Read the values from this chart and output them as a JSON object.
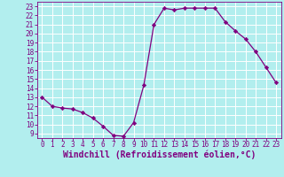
{
  "x": [
    0,
    1,
    2,
    3,
    4,
    5,
    6,
    7,
    8,
    9,
    10,
    11,
    12,
    13,
    14,
    15,
    16,
    17,
    18,
    19,
    20,
    21,
    22,
    23
  ],
  "y": [
    13.0,
    12.0,
    11.8,
    11.7,
    11.3,
    10.7,
    9.8,
    8.8,
    8.7,
    10.2,
    14.3,
    21.0,
    22.8,
    22.6,
    22.8,
    22.8,
    22.8,
    22.8,
    21.3,
    20.3,
    19.4,
    18.0,
    16.3,
    14.6
  ],
  "line_color": "#800080",
  "marker": "D",
  "marker_size": 2.2,
  "bg_color": "#b2eeee",
  "grid_color": "#ffffff",
  "xlabel": "Windchill (Refroidissement éolien,°C)",
  "xlim": [
    -0.5,
    23.5
  ],
  "ylim": [
    8.5,
    23.5
  ],
  "yticks": [
    9,
    10,
    11,
    12,
    13,
    14,
    15,
    16,
    17,
    18,
    19,
    20,
    21,
    22,
    23
  ],
  "xticks": [
    0,
    1,
    2,
    3,
    4,
    5,
    6,
    7,
    8,
    9,
    10,
    11,
    12,
    13,
    14,
    15,
    16,
    17,
    18,
    19,
    20,
    21,
    22,
    23
  ],
  "tick_color": "#800080",
  "label_color": "#800080",
  "tick_fontsize": 5.5,
  "xlabel_fontsize": 7.0,
  "linewidth": 0.9
}
